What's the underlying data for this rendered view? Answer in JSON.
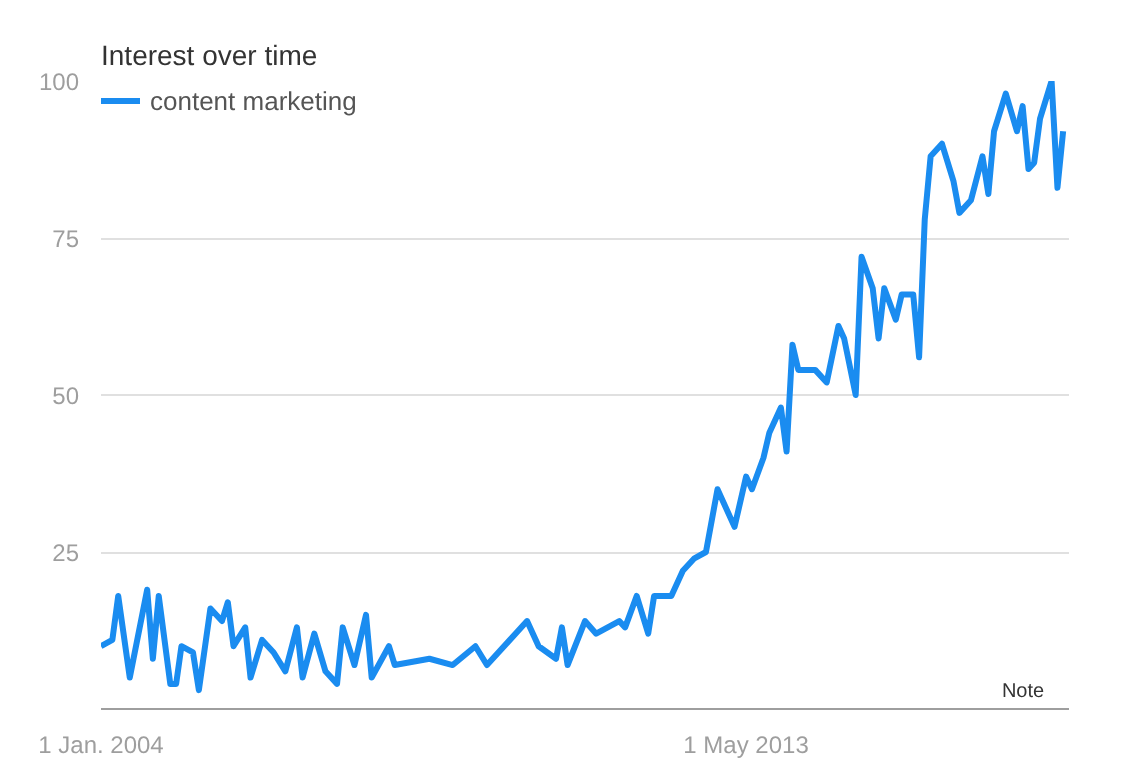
{
  "chart_data": {
    "type": "line",
    "title": "Interest over time",
    "x": [
      "2004-01",
      "2004-03",
      "2004-04",
      "2004-06",
      "2004-09",
      "2004-10",
      "2004-11",
      "2005-01",
      "2005-02",
      "2005-03",
      "2005-05",
      "2005-06",
      "2005-08",
      "2005-10",
      "2005-11",
      "2005-12",
      "2006-02",
      "2006-03",
      "2006-05",
      "2006-07",
      "2006-09",
      "2006-11",
      "2006-12",
      "2007-02",
      "2007-04",
      "2007-06",
      "2007-07",
      "2007-09",
      "2007-11",
      "2007-12",
      "2008-03",
      "2008-04",
      "2008-10",
      "2009-02",
      "2009-06",
      "2009-08",
      "2010-03",
      "2010-05",
      "2010-08",
      "2010-09",
      "2010-10",
      "2011-01",
      "2011-03",
      "2011-07",
      "2011-08",
      "2011-10",
      "2011-12",
      "2012-01",
      "2012-04",
      "2012-06",
      "2012-08",
      "2012-10",
      "2012-12",
      "2013-03",
      "2013-05",
      "2013-06",
      "2013-08",
      "2013-09",
      "2013-11",
      "2013-12",
      "2014-01",
      "2014-02",
      "2014-05",
      "2014-07",
      "2014-09",
      "2014-10",
      "2014-12",
      "2015-01",
      "2015-03",
      "2015-04",
      "2015-05",
      "2015-07",
      "2015-08",
      "2015-10",
      "2015-11",
      "2015-12",
      "2016-01",
      "2016-03",
      "2016-05",
      "2016-06",
      "2016-08",
      "2016-10",
      "2016-11",
      "2016-12",
      "2017-02",
      "2017-04",
      "2017-05",
      "2017-06",
      "2017-07",
      "2017-08",
      "2017-10",
      "2017-11",
      "2017-12"
    ],
    "series": [
      {
        "name": "content marketing",
        "color": "#1a8cf0",
        "values": [
          10,
          11,
          18,
          5,
          19,
          8,
          18,
          4,
          4,
          10,
          9,
          3,
          16,
          14,
          17,
          10,
          13,
          5,
          11,
          9,
          6,
          13,
          5,
          12,
          6,
          4,
          13,
          7,
          15,
          5,
          10,
          7,
          8,
          7,
          10,
          7,
          14,
          10,
          8,
          13,
          7,
          14,
          12,
          14,
          13,
          18,
          12,
          18,
          18,
          22,
          24,
          25,
          35,
          29,
          37,
          35,
          40,
          44,
          48,
          41,
          58,
          54,
          54,
          52,
          61,
          59,
          50,
          72,
          67,
          59,
          67,
          62,
          66,
          66,
          56,
          78,
          88,
          90,
          84,
          79,
          81,
          88,
          82,
          92,
          98,
          92,
          96,
          86,
          87,
          94,
          100,
          83,
          92
        ]
      }
    ],
    "xlim": [
      "2004-01",
      "2018-01"
    ],
    "xticks": [
      {
        "value": "2004-01",
        "label": "1 Jan. 2004"
      },
      {
        "value": "2013-05",
        "label": "1 May 2013"
      }
    ],
    "ylim": [
      0,
      100
    ],
    "yticks": [
      25,
      50,
      75,
      100
    ],
    "grid": "y",
    "legend": "top left",
    "annotations": [
      "Note"
    ]
  }
}
